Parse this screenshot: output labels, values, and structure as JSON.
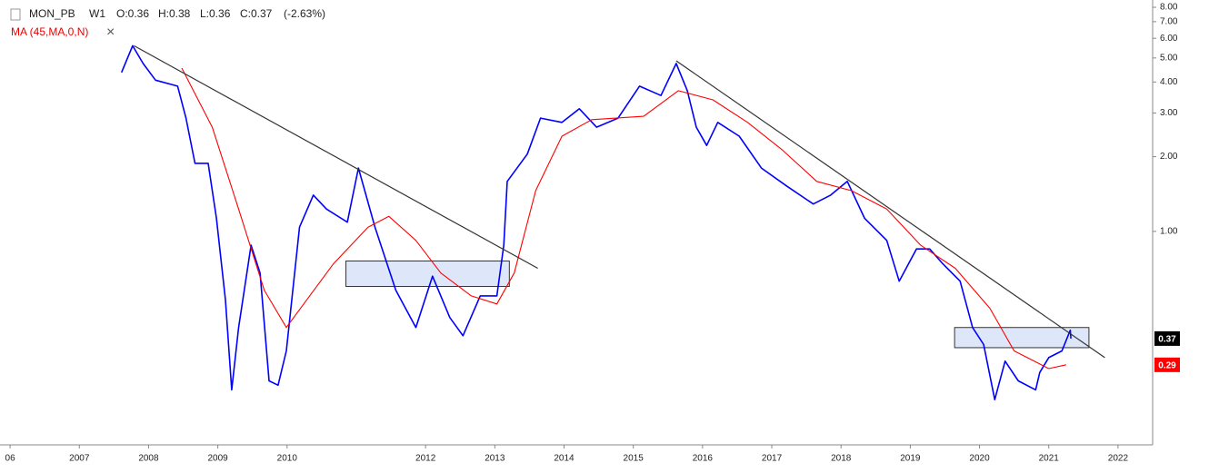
{
  "chart_data": {
    "type": "line",
    "header": {
      "symbol": "MON_PB",
      "interval": "W1",
      "open": "O:0.36",
      "high": "H:0.38",
      "low": "L:0.36",
      "close": "C:0.37",
      "change": "(-2.63%)"
    },
    "log_scale": true,
    "grid": false,
    "xlim": [
      2005.92,
      2022.5
    ],
    "xticks": [
      {
        "value": 2006,
        "label": "06"
      },
      2007,
      2008,
      2009,
      2010,
      2012,
      2013,
      2014,
      2015,
      2016,
      2017,
      2018,
      2019,
      2020,
      2021,
      2022
    ],
    "ylim": [
      0.138,
      8.56
    ],
    "yticks": [
      {
        "value": 1,
        "label": "1.00"
      },
      {
        "value": 2,
        "label": "2.00"
      },
      {
        "value": 3,
        "label": "3.00"
      },
      {
        "value": 4,
        "label": "4.00"
      },
      {
        "value": 5,
        "label": "5.00"
      },
      {
        "value": 6,
        "label": "6.00"
      },
      {
        "value": 7,
        "label": "7.00"
      },
      {
        "value": 8,
        "label": "8.00"
      }
    ],
    "series": [
      {
        "name": "MON_PB",
        "color": "#0000ff",
        "tag_color": "#000000",
        "x": [
          2007.61,
          2007.77,
          2007.92,
          2008.1,
          2008.42,
          2008.54,
          2008.67,
          2008.86,
          2008.98,
          2009.11,
          2009.2,
          2009.3,
          2009.48,
          2009.61,
          2009.74,
          2009.87,
          2009.99,
          2010.18,
          2010.38,
          2010.57,
          2010.87,
          2011.03,
          2011.27,
          2011.57,
          2011.86,
          2012.1,
          2012.35,
          2012.54,
          2012.79,
          2013.03,
          2013.13,
          2013.18,
          2013.47,
          2013.66,
          2013.97,
          2014.22,
          2014.47,
          2014.78,
          2015.09,
          2015.4,
          2015.62,
          2015.78,
          2015.91,
          2016.06,
          2016.22,
          2016.53,
          2016.85,
          2017.22,
          2017.6,
          2017.85,
          2018.09,
          2018.34,
          2018.66,
          2018.84,
          2019.09,
          2019.28,
          2019.47,
          2019.72,
          2019.9,
          2020.06,
          2020.22,
          2020.37,
          2020.56,
          2020.81,
          2020.87,
          2021.0,
          2021.19,
          2021.31,
          2021.32
        ],
        "values": [
          4.37,
          5.6,
          4.75,
          4.07,
          3.85,
          2.86,
          1.88,
          1.88,
          1.13,
          0.53,
          0.23,
          0.41,
          0.88,
          0.68,
          0.25,
          0.24,
          0.33,
          1.04,
          1.4,
          1.23,
          1.09,
          1.8,
          1.04,
          0.58,
          0.41,
          0.66,
          0.45,
          0.38,
          0.55,
          0.55,
          0.88,
          1.59,
          2.05,
          2.86,
          2.75,
          3.12,
          2.63,
          2.86,
          3.85,
          3.53,
          4.75,
          3.69,
          2.63,
          2.22,
          2.75,
          2.42,
          1.8,
          1.52,
          1.29,
          1.4,
          1.59,
          1.13,
          0.92,
          0.63,
          0.85,
          0.85,
          0.74,
          0.63,
          0.41,
          0.35,
          0.21,
          0.3,
          0.25,
          0.23,
          0.27,
          0.31,
          0.33,
          0.4,
          0.37
        ]
      },
      {
        "name": "MA (45,MA,0,N)",
        "color": "#ff0000",
        "tag_color": "#ff0000",
        "x": [
          2008.48,
          2008.92,
          2009.3,
          2009.67,
          2009.99,
          2010.67,
          2011.17,
          2011.47,
          2011.86,
          2012.22,
          2012.66,
          2013.03,
          2013.28,
          2013.59,
          2013.97,
          2014.4,
          2015.15,
          2015.65,
          2016.15,
          2016.65,
          2017.15,
          2017.65,
          2018.15,
          2018.66,
          2019.15,
          2019.65,
          2020.15,
          2020.5,
          2021.0,
          2021.25
        ],
        "values": [
          4.55,
          2.63,
          1.23,
          0.58,
          0.41,
          0.74,
          1.04,
          1.15,
          0.92,
          0.68,
          0.55,
          0.51,
          0.68,
          1.46,
          2.42,
          2.82,
          2.91,
          3.69,
          3.39,
          2.75,
          2.13,
          1.59,
          1.46,
          1.23,
          0.88,
          0.71,
          0.49,
          0.33,
          0.28,
          0.29
        ]
      }
    ],
    "trend_lines": [
      {
        "x": [
          2007.79,
          2013.62
        ],
        "values": [
          5.6,
          0.71
        ]
      },
      {
        "x": [
          2015.62,
          2021.81
        ],
        "values": [
          4.87,
          0.31
        ]
      }
    ],
    "boxes": [
      {
        "x": [
          2010.85,
          2013.21
        ],
        "values": [
          0.76,
          0.6
        ]
      },
      {
        "x": [
          2019.64,
          2021.58
        ],
        "values": [
          0.41,
          0.34
        ]
      }
    ]
  }
}
